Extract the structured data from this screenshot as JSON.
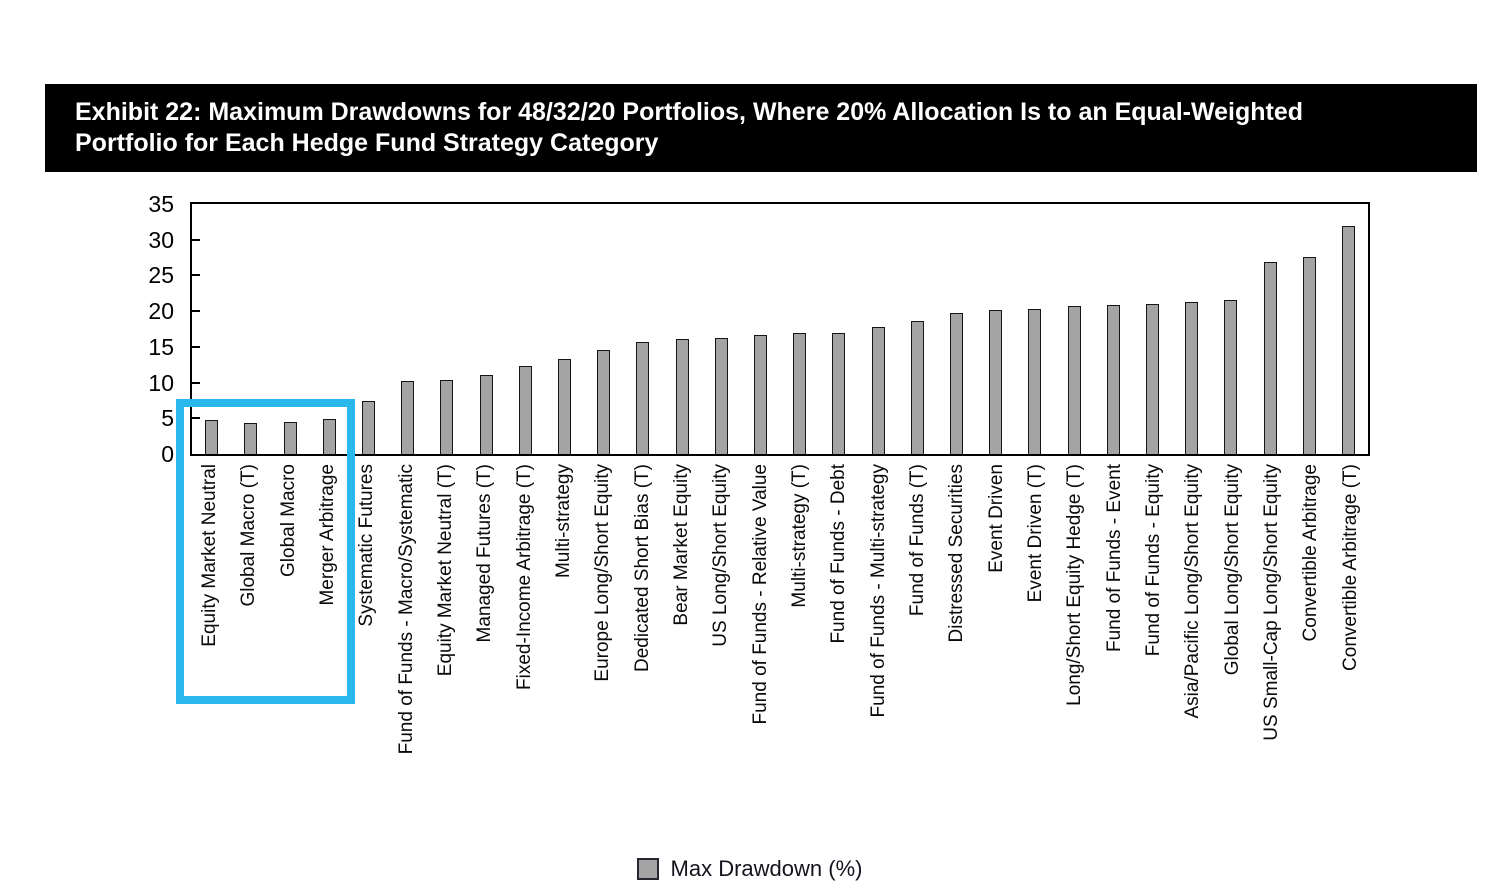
{
  "banner": {
    "title_line1": "Exhibit 22: Maximum Drawdowns for 48/32/20 Portfolios, Where 20% Allocation Is to an Equal-Weighted",
    "title_line2": "Portfolio for Each Hedge Fund Strategy Category"
  },
  "chart_data": {
    "type": "bar",
    "title": "Exhibit 22: Maximum Drawdowns for 48/32/20 Portfolios, Where 20% Allocation Is to an Equal-Weighted Portfolio for Each Hedge Fund Strategy Category",
    "categories": [
      "Equity Market Neutral",
      "Global Macro (T)",
      "Global Macro",
      "Merger Arbitrage",
      "Systematic Futures",
      "Fund of Funds - Macro/Systematic",
      "Equity Market Neutral (T)",
      "Managed Futures (T)",
      "Fixed-Income Arbitrage (T)",
      "Multi-strategy",
      "Europe Long/Short Equity",
      "Dedicated Short Bias (T)",
      "Bear Market Equity",
      "US Long/Short Equity",
      "Fund of Funds - Relative Value",
      "Multi-strategy (T)",
      "Fund of Funds - Debt",
      "Fund of Funds - Multi-strategy",
      "Fund of Funds (T)",
      "Distressed Securities",
      "Event Driven",
      "Event Driven (T)",
      "Long/Short Equity Hedge (T)",
      "Fund of Funds - Event",
      "Fund of Funds - Equity",
      "Asia/Pacific Long/Short Equity",
      "Global Long/Short Equity",
      "US Small-Cap Long/Short Equity",
      "Convertible Arbitrage",
      "Convertible Arbitrage (T)"
    ],
    "values": [
      4.7,
      4.4,
      4.5,
      4.9,
      7.4,
      10.2,
      10.4,
      11.0,
      12.3,
      13.3,
      14.6,
      15.7,
      16.1,
      16.3,
      16.7,
      16.9,
      17.0,
      17.8,
      18.6,
      19.7,
      20.1,
      20.3,
      20.7,
      20.9,
      21.0,
      21.3,
      21.6,
      26.9,
      27.6,
      31.9
    ],
    "xlabel": "",
    "ylabel": "",
    "ylim": [
      0,
      35
    ],
    "yticks": [
      0,
      5,
      10,
      15,
      20,
      25,
      30,
      35
    ],
    "grid": false,
    "bar_color": "#a4a4a4",
    "bar_border_color": "#161616",
    "legend": {
      "label": "Max Drawdown (%)",
      "position": "bottom",
      "swatch_color": "#a4a4a4"
    },
    "highlight_box": {
      "color": "#29b8ec",
      "categories_covered": [
        "Equity Market Neutral",
        "Global Macro (T)",
        "Global Macro",
        "Merger Arbitrage"
      ]
    }
  }
}
